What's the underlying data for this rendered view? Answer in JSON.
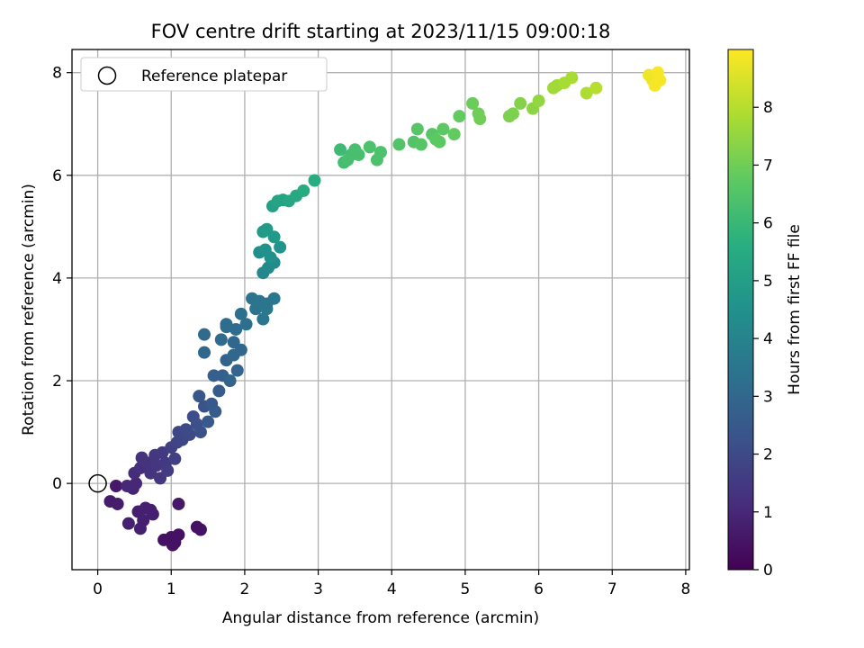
{
  "chart_data": {
    "type": "scatter",
    "title": "FOV centre drift starting at 2023/11/15 09:00:18",
    "xlabel": "Angular distance from reference (arcmin)",
    "ylabel": "Rotation from reference (arcmin)",
    "xlim": [
      -0.35,
      8.05
    ],
    "ylim": [
      -1.68,
      8.45
    ],
    "xticks": [
      0,
      1,
      2,
      3,
      4,
      5,
      6,
      7,
      8
    ],
    "yticks": [
      0,
      2,
      4,
      6,
      8
    ],
    "grid": true,
    "legend": {
      "placement": "top-left",
      "entries": [
        "Reference platepar"
      ]
    },
    "reference_point": {
      "x": 0,
      "y": 0
    },
    "colorbar": {
      "label": "Hours from first FF file",
      "colormap": "viridis",
      "range": [
        0,
        9
      ],
      "ticks": [
        0,
        1,
        2,
        3,
        4,
        5,
        6,
        7,
        8
      ]
    },
    "points": [
      [
        0.25,
        -0.05,
        0.6
      ],
      [
        0.17,
        -0.35,
        0.7
      ],
      [
        0.27,
        -0.4,
        0.7
      ],
      [
        0.42,
        -0.78,
        0.8
      ],
      [
        0.58,
        -0.88,
        0.8
      ],
      [
        0.55,
        -0.55,
        0.8
      ],
      [
        0.65,
        -0.48,
        0.8
      ],
      [
        0.72,
        -0.52,
        0.8
      ],
      [
        0.75,
        -0.6,
        0.8
      ],
      [
        0.62,
        -0.72,
        0.8
      ],
      [
        0.48,
        -0.1,
        0.9
      ],
      [
        0.52,
        0.0,
        1.0
      ],
      [
        0.4,
        -0.05,
        1.0
      ],
      [
        0.5,
        0.2,
        1.1
      ],
      [
        0.58,
        0.3,
        1.2
      ],
      [
        0.6,
        0.5,
        1.3
      ],
      [
        0.68,
        0.4,
        1.3
      ],
      [
        0.72,
        0.2,
        1.3
      ],
      [
        0.78,
        0.55,
        1.4
      ],
      [
        0.8,
        0.35,
        1.4
      ],
      [
        0.85,
        0.1,
        1.4
      ],
      [
        0.88,
        0.6,
        1.5
      ],
      [
        0.92,
        0.4,
        1.5
      ],
      [
        0.95,
        0.25,
        1.6
      ],
      [
        1.0,
        0.7,
        1.7
      ],
      [
        1.05,
        0.48,
        1.7
      ],
      [
        1.08,
        0.8,
        1.8
      ],
      [
        1.1,
        1.0,
        1.9
      ],
      [
        1.15,
        0.85,
        1.9
      ],
      [
        1.2,
        1.05,
        2.0
      ],
      [
        1.25,
        0.95,
        2.0
      ],
      [
        1.3,
        1.3,
        2.1
      ],
      [
        1.35,
        1.15,
        2.2
      ],
      [
        1.4,
        1.0,
        2.2
      ],
      [
        1.45,
        1.5,
        2.3
      ],
      [
        1.38,
        1.7,
        2.4
      ],
      [
        1.55,
        1.55,
        2.5
      ],
      [
        1.6,
        1.4,
        2.6
      ],
      [
        1.5,
        1.2,
        2.5
      ],
      [
        1.65,
        1.8,
        2.6
      ],
      [
        1.7,
        2.1,
        2.7
      ],
      [
        1.58,
        2.1,
        2.7
      ],
      [
        1.75,
        2.4,
        2.8
      ],
      [
        1.8,
        2.0,
        2.9
      ],
      [
        1.9,
        2.2,
        2.9
      ],
      [
        1.85,
        2.5,
        3.0
      ],
      [
        1.45,
        2.55,
        3.0
      ],
      [
        1.45,
        2.9,
        3.1
      ],
      [
        1.68,
        2.8,
        3.1
      ],
      [
        1.75,
        3.1,
        3.2
      ],
      [
        1.88,
        3.0,
        3.2
      ],
      [
        1.95,
        3.3,
        3.3
      ],
      [
        2.02,
        3.1,
        3.3
      ],
      [
        2.1,
        3.6,
        3.4
      ],
      [
        2.15,
        3.4,
        3.4
      ],
      [
        2.2,
        3.55,
        3.5
      ],
      [
        2.25,
        3.2,
        3.5
      ],
      [
        2.3,
        3.4,
        3.6
      ],
      [
        2.4,
        3.6,
        3.6
      ],
      [
        2.3,
        3.5,
        3.5
      ],
      [
        1.75,
        3.05,
        3.2
      ],
      [
        1.85,
        2.75,
        3.0
      ],
      [
        1.95,
        2.6,
        3.0
      ],
      [
        2.25,
        4.1,
        4.1
      ],
      [
        2.32,
        4.2,
        4.2
      ],
      [
        2.4,
        4.3,
        4.3
      ],
      [
        2.2,
        4.5,
        4.4
      ],
      [
        2.28,
        4.55,
        4.5
      ],
      [
        2.35,
        4.4,
        4.5
      ],
      [
        2.48,
        4.6,
        4.6
      ],
      [
        2.25,
        4.9,
        4.8
      ],
      [
        2.3,
        4.95,
        4.9
      ],
      [
        2.4,
        4.8,
        4.8
      ],
      [
        2.38,
        5.4,
        5.1
      ],
      [
        2.45,
        5.5,
        5.2
      ],
      [
        2.52,
        5.52,
        5.2
      ],
      [
        2.6,
        5.5,
        5.3
      ],
      [
        2.7,
        5.6,
        5.4
      ],
      [
        2.8,
        5.7,
        5.5
      ],
      [
        2.95,
        5.9,
        5.6
      ],
      [
        3.3,
        6.5,
        6.1
      ],
      [
        3.35,
        6.25,
        6.2
      ],
      [
        3.45,
        6.4,
        6.2
      ],
      [
        3.5,
        6.5,
        6.3
      ],
      [
        3.55,
        6.4,
        6.3
      ],
      [
        3.4,
        6.3,
        6.3
      ],
      [
        3.7,
        6.55,
        6.4
      ],
      [
        3.8,
        6.3,
        6.4
      ],
      [
        3.85,
        6.45,
        6.4
      ],
      [
        4.1,
        6.6,
        6.5
      ],
      [
        4.3,
        6.65,
        6.5
      ],
      [
        4.4,
        6.6,
        6.6
      ],
      [
        4.35,
        6.9,
        6.6
      ],
      [
        4.55,
        6.8,
        6.6
      ],
      [
        4.6,
        6.7,
        6.7
      ],
      [
        4.7,
        6.9,
        6.7
      ],
      [
        4.65,
        6.65,
        6.7
      ],
      [
        4.85,
        6.8,
        6.8
      ],
      [
        4.92,
        7.15,
        6.8
      ],
      [
        5.1,
        7.4,
        6.9
      ],
      [
        5.18,
        7.2,
        7.0
      ],
      [
        5.2,
        7.1,
        7.0
      ],
      [
        5.6,
        7.15,
        7.2
      ],
      [
        5.65,
        7.2,
        7.2
      ],
      [
        5.75,
        7.4,
        7.3
      ],
      [
        5.92,
        7.3,
        7.4
      ],
      [
        6.0,
        7.45,
        7.5
      ],
      [
        6.2,
        7.7,
        7.7
      ],
      [
        6.25,
        7.75,
        7.7
      ],
      [
        6.35,
        7.8,
        7.8
      ],
      [
        6.45,
        7.9,
        7.8
      ],
      [
        6.65,
        7.6,
        7.9
      ],
      [
        6.78,
        7.7,
        8.0
      ],
      [
        7.5,
        7.95,
        8.8
      ],
      [
        7.55,
        7.85,
        8.8
      ],
      [
        7.58,
        7.75,
        8.9
      ],
      [
        7.62,
        8.0,
        8.9
      ],
      [
        7.65,
        7.85,
        8.9
      ],
      [
        0.9,
        -1.1,
        0.4
      ],
      [
        1.0,
        -1.05,
        0.4
      ],
      [
        1.05,
        -1.15,
        0.4
      ],
      [
        1.1,
        -1.0,
        0.4
      ],
      [
        1.02,
        -1.2,
        0.4
      ],
      [
        1.35,
        -0.85,
        0.4
      ],
      [
        1.4,
        -0.9,
        0.4
      ],
      [
        1.1,
        -0.4,
        0.6
      ]
    ]
  }
}
